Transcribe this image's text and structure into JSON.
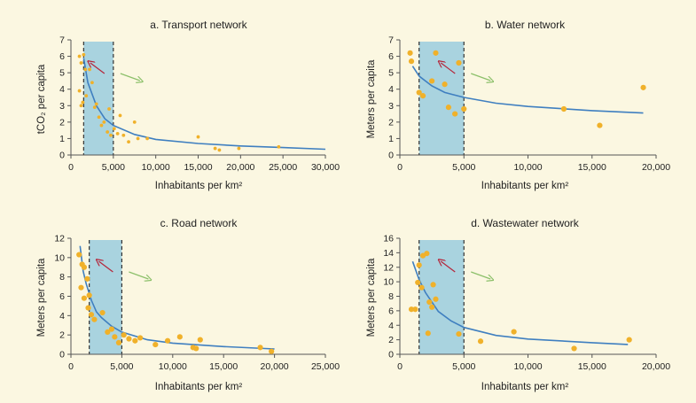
{
  "colors": {
    "background": "#fbf7e1",
    "fit_line": "#3f7fc0",
    "points": "#f0b12a",
    "band": "#a9d3df",
    "band_edge": "#333333",
    "arrow_up": "#b5253a",
    "arrow_down": "#8cc06a",
    "axis": "#555555"
  },
  "chart_data": [
    {
      "type": "scatter",
      "title": "a.  Transport network",
      "xlabel": "Inhabitants per km²",
      "ylabel": "tCO₂ per capita",
      "xlim": [
        0,
        30000
      ],
      "ylim": [
        0,
        7
      ],
      "xticks": [
        0,
        5000,
        10000,
        15000,
        20000,
        25000,
        30000
      ],
      "xtick_labels": [
        "0",
        "5,000",
        "10,000",
        "15,000",
        "20,000",
        "25,000",
        "30,000"
      ],
      "yticks": [
        0,
        1,
        2,
        3,
        4,
        5,
        6,
        7
      ],
      "ytick_labels": [
        "0",
        "1",
        "2",
        "3",
        "4",
        "5",
        "6",
        "7"
      ],
      "point_size": "small",
      "band": [
        1500,
        5000
      ],
      "points": [
        [
          1000,
          6.0
        ],
        [
          1200,
          5.6
        ],
        [
          1500,
          6.1
        ],
        [
          1700,
          5.2
        ],
        [
          1000,
          3.9
        ],
        [
          1200,
          3.0
        ],
        [
          1400,
          3.2
        ],
        [
          1800,
          3.6
        ],
        [
          2200,
          5.2
        ],
        [
          2500,
          4.4
        ],
        [
          2800,
          2.9
        ],
        [
          3000,
          3.1
        ],
        [
          3300,
          2.3
        ],
        [
          3600,
          1.8
        ],
        [
          3900,
          2.0
        ],
        [
          4300,
          1.4
        ],
        [
          4700,
          1.2
        ],
        [
          4500,
          2.8
        ],
        [
          5100,
          1.6
        ],
        [
          5500,
          1.3
        ],
        [
          5800,
          2.4
        ],
        [
          6200,
          1.2
        ],
        [
          6800,
          0.8
        ],
        [
          7500,
          2.0
        ],
        [
          7900,
          1.0
        ],
        [
          9000,
          1.0
        ],
        [
          15000,
          1.1
        ],
        [
          17000,
          0.4
        ],
        [
          17500,
          0.3
        ],
        [
          19800,
          0.4
        ],
        [
          24500,
          0.5
        ]
      ],
      "fit": [
        [
          1500,
          5.9
        ],
        [
          2000,
          4.4
        ],
        [
          3000,
          3.0
        ],
        [
          4000,
          2.2
        ],
        [
          5000,
          1.8
        ],
        [
          7500,
          1.25
        ],
        [
          10000,
          0.95
        ],
        [
          15000,
          0.7
        ],
        [
          20000,
          0.55
        ],
        [
          25000,
          0.45
        ],
        [
          30000,
          0.35
        ]
      ]
    },
    {
      "type": "scatter",
      "title": "b.  Water network",
      "xlabel": "Inhabitants per km²",
      "ylabel": "Meters per capita",
      "xlim": [
        0,
        20000
      ],
      "ylim": [
        0,
        7
      ],
      "xticks": [
        0,
        5000,
        10000,
        15000,
        20000
      ],
      "xtick_labels": [
        "0",
        "5,000",
        "10,000",
        "15,000",
        "20,000"
      ],
      "yticks": [
        0,
        1,
        2,
        3,
        4,
        5,
        6,
        7
      ],
      "ytick_labels": [
        "0",
        "1",
        "2",
        "3",
        "4",
        "5",
        "6",
        "7"
      ],
      "point_size": "large",
      "band": [
        1500,
        5000
      ],
      "points": [
        [
          800,
          6.2
        ],
        [
          900,
          5.7
        ],
        [
          1500,
          3.8
        ],
        [
          1800,
          3.6
        ],
        [
          2500,
          4.5
        ],
        [
          2800,
          6.2
        ],
        [
          3500,
          4.3
        ],
        [
          3800,
          2.9
        ],
        [
          4300,
          2.5
        ],
        [
          4600,
          5.6
        ],
        [
          5000,
          2.8
        ],
        [
          12800,
          2.8
        ],
        [
          15600,
          1.8
        ],
        [
          19000,
          4.1
        ]
      ],
      "fit": [
        [
          1000,
          5.4
        ],
        [
          1500,
          4.8
        ],
        [
          2500,
          4.2
        ],
        [
          3500,
          3.8
        ],
        [
          5000,
          3.5
        ],
        [
          7500,
          3.15
        ],
        [
          10000,
          2.95
        ],
        [
          15000,
          2.7
        ],
        [
          19000,
          2.55
        ]
      ]
    },
    {
      "type": "scatter",
      "title": "c.  Road network",
      "xlabel": "Inhabitants per km²",
      "ylabel": "Meters per capita",
      "xlim": [
        0,
        25000
      ],
      "ylim": [
        0,
        12
      ],
      "xticks": [
        0,
        5000,
        10000,
        15000,
        20000,
        25000
      ],
      "xtick_labels": [
        "0",
        "5,000",
        "10,000",
        "15,000",
        "20,000",
        "25,000"
      ],
      "yticks": [
        0,
        2,
        4,
        6,
        8,
        10,
        12
      ],
      "ytick_labels": [
        "0",
        "2",
        "4",
        "6",
        "8",
        "10",
        "12"
      ],
      "point_size": "large",
      "band": [
        1800,
        5000
      ],
      "points": [
        [
          800,
          10.3
        ],
        [
          1100,
          9.3
        ],
        [
          1300,
          9.0
        ],
        [
          1000,
          6.9
        ],
        [
          1300,
          5.8
        ],
        [
          1600,
          7.8
        ],
        [
          1800,
          6.1
        ],
        [
          1700,
          4.8
        ],
        [
          2000,
          4.1
        ],
        [
          2300,
          3.6
        ],
        [
          3100,
          4.3
        ],
        [
          3600,
          2.3
        ],
        [
          4000,
          2.6
        ],
        [
          4300,
          1.8
        ],
        [
          4700,
          1.2
        ],
        [
          5200,
          2.0
        ],
        [
          5700,
          1.6
        ],
        [
          6300,
          1.4
        ],
        [
          6800,
          1.7
        ],
        [
          8300,
          1.0
        ],
        [
          9500,
          1.4
        ],
        [
          10700,
          1.8
        ],
        [
          12000,
          0.7
        ],
        [
          12300,
          0.6
        ],
        [
          12700,
          1.5
        ],
        [
          18600,
          0.7
        ],
        [
          19700,
          0.3
        ]
      ],
      "fit": [
        [
          900,
          11.2
        ],
        [
          1200,
          8.6
        ],
        [
          1500,
          7.3
        ],
        [
          2000,
          5.6
        ],
        [
          2500,
          4.4
        ],
        [
          3000,
          3.8
        ],
        [
          4000,
          2.9
        ],
        [
          5000,
          2.3
        ],
        [
          7500,
          1.5
        ],
        [
          10000,
          1.15
        ],
        [
          15000,
          0.8
        ],
        [
          20000,
          0.55
        ]
      ]
    },
    {
      "type": "scatter",
      "title": "d.  Wastewater network",
      "xlabel": "Inhabitants per km²",
      "ylabel": "Meters per capita",
      "xlim": [
        0,
        20000
      ],
      "ylim": [
        0,
        16
      ],
      "xticks": [
        0,
        5000,
        10000,
        15000,
        20000
      ],
      "xtick_labels": [
        "0",
        "5,000",
        "10,000",
        "15,000",
        "20,000"
      ],
      "yticks": [
        0,
        2,
        4,
        6,
        8,
        10,
        12,
        14,
        16
      ],
      "ytick_labels": [
        "0",
        "2",
        "4",
        "6",
        "8",
        "10",
        "12",
        "14",
        "16"
      ],
      "point_size": "large",
      "band": [
        1500,
        5000
      ],
      "points": [
        [
          900,
          6.2
        ],
        [
          1200,
          6.2
        ],
        [
          1400,
          9.9
        ],
        [
          1500,
          12.3
        ],
        [
          1700,
          9.2
        ],
        [
          1800,
          13.6
        ],
        [
          2100,
          13.9
        ],
        [
          2300,
          7.2
        ],
        [
          2500,
          6.5
        ],
        [
          2200,
          2.9
        ],
        [
          2600,
          9.6
        ],
        [
          2800,
          7.6
        ],
        [
          4600,
          2.8
        ],
        [
          6300,
          1.8
        ],
        [
          8900,
          3.1
        ],
        [
          13600,
          0.8
        ],
        [
          17900,
          2.0
        ]
      ],
      "fit": [
        [
          1000,
          12.8
        ],
        [
          1500,
          10.3
        ],
        [
          2000,
          8.5
        ],
        [
          3000,
          5.9
        ],
        [
          4000,
          4.6
        ],
        [
          5000,
          3.7
        ],
        [
          7500,
          2.6
        ],
        [
          10000,
          2.1
        ],
        [
          15000,
          1.6
        ],
        [
          17800,
          1.35
        ]
      ]
    }
  ]
}
